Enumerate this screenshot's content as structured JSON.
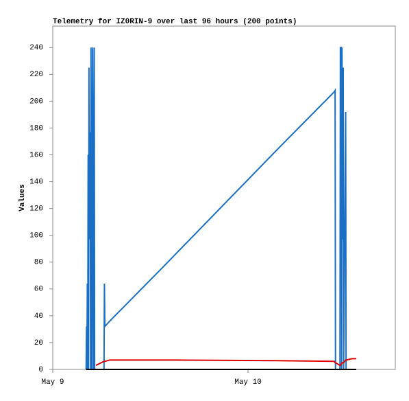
{
  "chart_data": {
    "type": "line",
    "title": "Telemetry for IZ0RIN-9 over last 96 hours (200 points)",
    "y_label": "Values",
    "x": [
      4.1,
      4.15,
      4.2,
      4.25,
      4.3,
      4.35,
      4.4,
      4.45,
      4.5,
      4.6,
      4.65,
      4.7,
      4.8,
      4.9,
      5.0,
      5.1,
      5.15,
      5.3,
      6.3,
      6.35,
      6.4,
      7.0,
      13.5,
      27.6,
      34.6,
      34.7,
      34.75,
      35.3,
      35.35,
      35.45,
      35.5,
      35.55,
      35.6,
      35.7,
      35.75,
      36.0,
      36.05,
      36.8,
      37.3
    ],
    "series": [
      {
        "color": "#1a6fc4",
        "values": [
          0,
          32,
          0,
          64,
          0,
          160,
          0,
          225,
          97,
          177,
          0,
          240,
          0,
          240,
          0,
          240,
          0,
          0,
          0,
          64,
          32,
          36,
          76,
          164,
          207,
          208,
          0,
          0,
          240,
          240,
          0,
          240,
          97,
          225,
          0,
          192,
          0,
          null,
          null
        ]
      },
      {
        "color": "#dd0000",
        "values": [
          null,
          null,
          null,
          null,
          null,
          null,
          null,
          null,
          null,
          null,
          null,
          null,
          null,
          null,
          null,
          null,
          null,
          3,
          6,
          6,
          6,
          7,
          7,
          6.5,
          6,
          5,
          5,
          3,
          3,
          4,
          4,
          5,
          5,
          5,
          5,
          7,
          7,
          8,
          8
        ]
      },
      {
        "color": "#000000",
        "values": [
          0,
          0,
          0,
          0,
          0,
          0,
          0,
          0,
          0,
          0,
          0,
          0,
          0,
          0,
          0,
          0,
          0,
          0,
          0,
          0,
          0,
          0,
          0,
          0,
          0,
          0,
          0,
          0,
          0,
          0,
          0,
          0,
          0,
          0,
          0,
          0,
          0,
          0,
          0
        ]
      }
    ],
    "xlim": [
      0,
      42.1
    ],
    "xticks": [
      {
        "value": 0,
        "label": "May 9"
      },
      {
        "value": 24,
        "label": "May 10"
      }
    ],
    "ylim": [
      0,
      256
    ],
    "yticks": [
      0,
      20,
      40,
      60,
      80,
      100,
      120,
      140,
      160,
      180,
      200,
      220,
      240
    ]
  }
}
